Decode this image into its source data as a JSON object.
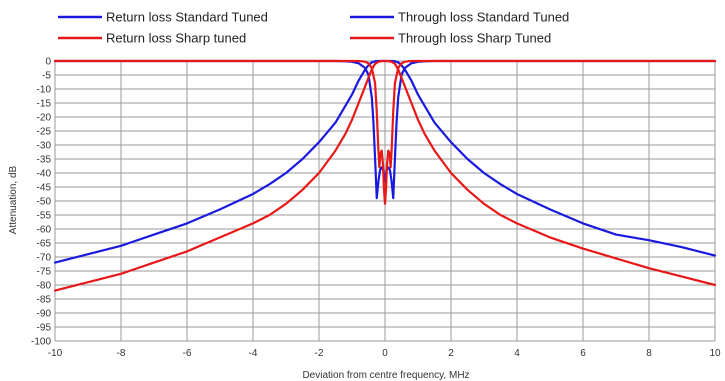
{
  "chart_data": {
    "type": "line",
    "title": "",
    "xlabel": "Deviation from centre frequency, MHz",
    "ylabel": "Attenuation, dB",
    "xlim": [
      -10,
      10
    ],
    "ylim": [
      -100,
      0
    ],
    "x_ticks": [
      -10,
      -8,
      -6,
      -4,
      -2,
      0,
      2,
      4,
      6,
      8,
      10
    ],
    "y_ticks": [
      0,
      -5,
      -10,
      -15,
      -20,
      -25,
      -30,
      -35,
      -40,
      -45,
      -50,
      -55,
      -60,
      -65,
      -70,
      -75,
      -80,
      -85,
      -90,
      -95,
      -100
    ],
    "grid": true,
    "legend_position": "top",
    "legend": [
      {
        "name": "Return loss Standard Tuned",
        "color": "#1a1adf"
      },
      {
        "name": "Through loss Standard Tuned",
        "color": "#1a1adf"
      },
      {
        "name": "Return loss Sharp tuned",
        "color": "#e81818"
      },
      {
        "name": "Through loss Sharp Tuned",
        "color": "#e81818"
      }
    ],
    "series": [
      {
        "name": "Return loss Standard Tuned",
        "color": "#1a1adf",
        "points": [
          [
            -10,
            -72
          ],
          [
            -9,
            -69
          ],
          [
            -8,
            -66
          ],
          [
            -7,
            -62
          ],
          [
            -6,
            -58
          ],
          [
            -5,
            -53
          ],
          [
            -4,
            -47.5
          ],
          [
            -3.5,
            -44
          ],
          [
            -3,
            -40
          ],
          [
            -2.5,
            -35
          ],
          [
            -2,
            -29
          ],
          [
            -1.5,
            -22
          ],
          [
            -1.2,
            -16
          ],
          [
            -1,
            -12
          ],
          [
            -0.8,
            -7
          ],
          [
            -0.6,
            -3
          ],
          [
            -0.5,
            -1.5
          ],
          [
            -0.4,
            -0.5
          ],
          [
            -0.3,
            -0.1
          ],
          [
            -0.2,
            0
          ],
          [
            0.2,
            0
          ],
          [
            0.3,
            -0.1
          ],
          [
            0.4,
            -0.5
          ],
          [
            0.5,
            -1.5
          ],
          [
            0.6,
            -3
          ],
          [
            0.8,
            -7
          ],
          [
            1,
            -12
          ],
          [
            1.2,
            -16
          ],
          [
            1.5,
            -22
          ],
          [
            2,
            -29
          ],
          [
            2.5,
            -35
          ],
          [
            3,
            -40
          ],
          [
            3.5,
            -44
          ],
          [
            4,
            -47.5
          ],
          [
            5,
            -53
          ],
          [
            6,
            -58
          ],
          [
            7,
            -62
          ],
          [
            8,
            -64
          ],
          [
            9,
            -66.5
          ],
          [
            10,
            -69.5
          ]
        ]
      },
      {
        "name": "Through loss Standard Tuned",
        "color": "#1a1adf",
        "points": [
          [
            -10,
            0
          ],
          [
            -1.5,
            0
          ],
          [
            -1.2,
            -0.1
          ],
          [
            -1,
            -0.3
          ],
          [
            -0.8,
            -0.8
          ],
          [
            -0.6,
            -2.5
          ],
          [
            -0.5,
            -5
          ],
          [
            -0.4,
            -13
          ],
          [
            -0.35,
            -22
          ],
          [
            -0.3,
            -35
          ],
          [
            -0.25,
            -49
          ],
          [
            -0.2,
            -43
          ],
          [
            -0.15,
            -39
          ],
          [
            -0.1,
            -38
          ],
          [
            -0.05,
            -39
          ],
          [
            0,
            -43
          ],
          [
            0.05,
            -39
          ],
          [
            0.1,
            -38
          ],
          [
            0.15,
            -39
          ],
          [
            0.2,
            -43
          ],
          [
            0.25,
            -49
          ],
          [
            0.3,
            -35
          ],
          [
            0.35,
            -22
          ],
          [
            0.4,
            -13
          ],
          [
            0.5,
            -5
          ],
          [
            0.6,
            -2.5
          ],
          [
            0.8,
            -0.8
          ],
          [
            1,
            -0.3
          ],
          [
            1.2,
            -0.1
          ],
          [
            1.5,
            0
          ],
          [
            10,
            0
          ]
        ]
      },
      {
        "name": "Return loss Sharp tuned",
        "color": "#e81818",
        "points": [
          [
            -10,
            -82
          ],
          [
            -9,
            -79
          ],
          [
            -8,
            -76
          ],
          [
            -7,
            -72
          ],
          [
            -6,
            -68
          ],
          [
            -5,
            -63
          ],
          [
            -4,
            -58
          ],
          [
            -3.5,
            -55
          ],
          [
            -3,
            -51
          ],
          [
            -2.5,
            -46
          ],
          [
            -2,
            -40
          ],
          [
            -1.5,
            -32
          ],
          [
            -1.2,
            -26
          ],
          [
            -1,
            -21
          ],
          [
            -0.8,
            -15
          ],
          [
            -0.6,
            -9
          ],
          [
            -0.5,
            -6
          ],
          [
            -0.4,
            -3
          ],
          [
            -0.3,
            -1
          ],
          [
            -0.2,
            -0.3
          ],
          [
            -0.1,
            0
          ],
          [
            0.1,
            0
          ],
          [
            0.2,
            -0.3
          ],
          [
            0.3,
            -1
          ],
          [
            0.4,
            -3
          ],
          [
            0.5,
            -6
          ],
          [
            0.6,
            -9
          ],
          [
            0.8,
            -15
          ],
          [
            1,
            -21
          ],
          [
            1.2,
            -26
          ],
          [
            1.5,
            -32
          ],
          [
            2,
            -40
          ],
          [
            2.5,
            -46
          ],
          [
            3,
            -51
          ],
          [
            3.5,
            -55
          ],
          [
            4,
            -58
          ],
          [
            5,
            -63
          ],
          [
            6,
            -67
          ],
          [
            7,
            -70.5
          ],
          [
            8,
            -74
          ],
          [
            9,
            -77
          ],
          [
            10,
            -80
          ]
        ]
      },
      {
        "name": "Through loss Sharp Tuned",
        "color": "#e81818",
        "points": [
          [
            -10,
            0
          ],
          [
            -0.9,
            0
          ],
          [
            -0.7,
            -0.1
          ],
          [
            -0.6,
            -0.3
          ],
          [
            -0.5,
            -0.8
          ],
          [
            -0.4,
            -2.5
          ],
          [
            -0.3,
            -8
          ],
          [
            -0.25,
            -18
          ],
          [
            -0.2,
            -32
          ],
          [
            -0.17,
            -38
          ],
          [
            -0.14,
            -33
          ],
          [
            -0.1,
            -32
          ],
          [
            -0.06,
            -37
          ],
          [
            -0.03,
            -46
          ],
          [
            0,
            -51
          ],
          [
            0.03,
            -46
          ],
          [
            0.06,
            -37
          ],
          [
            0.1,
            -32
          ],
          [
            0.14,
            -33
          ],
          [
            0.17,
            -38
          ],
          [
            0.2,
            -32
          ],
          [
            0.25,
            -18
          ],
          [
            0.3,
            -8
          ],
          [
            0.4,
            -2.5
          ],
          [
            0.5,
            -0.8
          ],
          [
            0.6,
            -0.3
          ],
          [
            0.7,
            -0.1
          ],
          [
            0.9,
            0
          ],
          [
            10,
            0
          ]
        ]
      }
    ]
  }
}
